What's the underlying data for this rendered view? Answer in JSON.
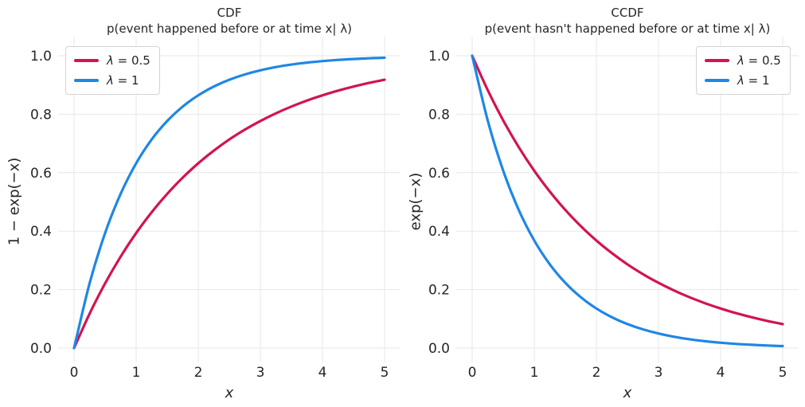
{
  "figure": {
    "background": "#ffffff",
    "grid_color": "#e7e7e7",
    "text_color": "#262626"
  },
  "chart_data": [
    {
      "id": "cdf",
      "type": "line",
      "title": "CDF",
      "subtitle": "p(event happened before or at time x| λ)",
      "xlabel": "x",
      "ylabel": "1 − exp(−x)",
      "xlim": [
        -0.25,
        5.25
      ],
      "ylim": [
        -0.05,
        1.07
      ],
      "grid": "on",
      "xticks": [
        0,
        1,
        2,
        3,
        4,
        5
      ],
      "xtick_labels": [
        "0",
        "1",
        "2",
        "3",
        "4",
        "5"
      ],
      "yticks": [
        0.0,
        0.2,
        0.4,
        0.6,
        0.8,
        1.0
      ],
      "ytick_labels": [
        "0.0",
        "0.2",
        "0.4",
        "0.6",
        "0.8",
        "1.0"
      ],
      "legend": {
        "position": "upper-left",
        "items": [
          {
            "label": "λ = 0.5",
            "color": "#d21450"
          },
          {
            "label": "λ = 1",
            "color": "#1e87e5"
          }
        ]
      },
      "x": [
        0,
        0.25,
        0.5,
        0.75,
        1,
        1.25,
        1.5,
        1.75,
        2,
        2.25,
        2.5,
        2.75,
        3,
        3.25,
        3.5,
        3.75,
        4,
        4.25,
        4.5,
        4.75,
        5
      ],
      "series": [
        {
          "name": "λ = 0.5",
          "color": "#d21450",
          "values": [
            0,
            0.1175,
            0.2212,
            0.3127,
            0.3935,
            0.4647,
            0.5276,
            0.5831,
            0.6321,
            0.6753,
            0.7135,
            0.7472,
            0.7769,
            0.8031,
            0.8262,
            0.8466,
            0.8647,
            0.8806,
            0.8946,
            0.907,
            0.9179
          ]
        },
        {
          "name": "λ = 1",
          "color": "#1e87e5",
          "values": [
            0,
            0.2212,
            0.3935,
            0.5276,
            0.6321,
            0.7135,
            0.7769,
            0.8262,
            0.8647,
            0.8946,
            0.9179,
            0.9361,
            0.9502,
            0.9612,
            0.9698,
            0.9765,
            0.9817,
            0.9857,
            0.9889,
            0.9913,
            0.9933
          ]
        }
      ]
    },
    {
      "id": "ccdf",
      "type": "line",
      "title": "CCDF",
      "subtitle": "p(event hasn't happened before or at time x| λ)",
      "xlabel": "x",
      "ylabel": "exp(−x)",
      "xlim": [
        -0.25,
        5.25
      ],
      "ylim": [
        -0.05,
        1.07
      ],
      "grid": "on",
      "xticks": [
        0,
        1,
        2,
        3,
        4,
        5
      ],
      "xtick_labels": [
        "0",
        "1",
        "2",
        "3",
        "4",
        "5"
      ],
      "yticks": [
        0.0,
        0.2,
        0.4,
        0.6,
        0.8,
        1.0
      ],
      "ytick_labels": [
        "0.0",
        "0.2",
        "0.4",
        "0.6",
        "0.8",
        "1.0"
      ],
      "legend": {
        "position": "upper-right",
        "items": [
          {
            "label": "λ = 0.5",
            "color": "#d21450"
          },
          {
            "label": "λ = 1",
            "color": "#1e87e5"
          }
        ]
      },
      "x": [
        0,
        0.25,
        0.5,
        0.75,
        1,
        1.25,
        1.5,
        1.75,
        2,
        2.25,
        2.5,
        2.75,
        3,
        3.25,
        3.5,
        3.75,
        4,
        4.25,
        4.5,
        4.75,
        5
      ],
      "series": [
        {
          "name": "λ = 0.5",
          "color": "#d21450",
          "values": [
            1,
            0.8825,
            0.7788,
            0.6873,
            0.6065,
            0.5353,
            0.4724,
            0.4169,
            0.3679,
            0.3247,
            0.2865,
            0.2528,
            0.2231,
            0.1969,
            0.1738,
            0.1534,
            0.1353,
            0.1194,
            0.1054,
            0.093,
            0.0821
          ]
        },
        {
          "name": "λ = 1",
          "color": "#1e87e5",
          "values": [
            1,
            0.7788,
            0.6065,
            0.4724,
            0.3679,
            0.2865,
            0.2231,
            0.1738,
            0.1353,
            0.1054,
            0.0821,
            0.0639,
            0.0498,
            0.0388,
            0.0302,
            0.0235,
            0.0183,
            0.0143,
            0.0111,
            0.0087,
            0.0067
          ]
        }
      ]
    }
  ]
}
